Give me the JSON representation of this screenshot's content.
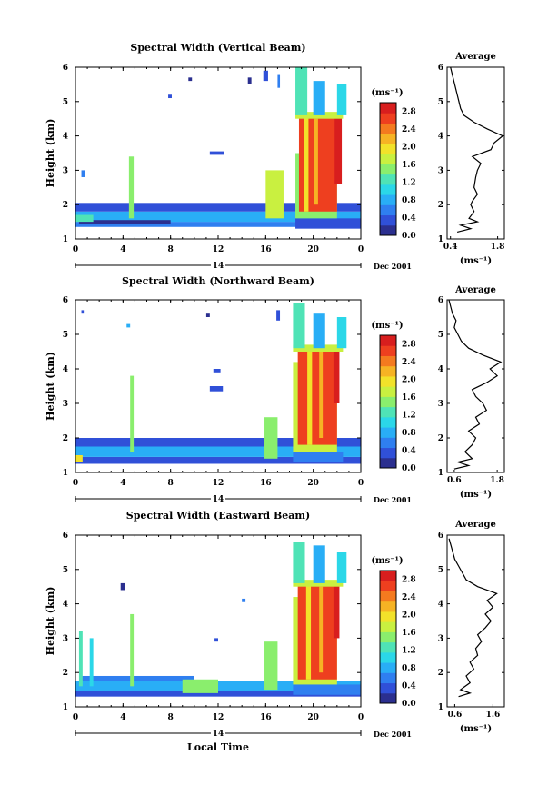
{
  "chart_data": [
    {
      "type": "heatmap",
      "title": "Spectral Width (Vertical Beam)",
      "ylabel": "Height (km)",
      "xlim": [
        0,
        24
      ],
      "ylim": [
        1,
        6
      ],
      "x_ticks": [
        "0",
        "4",
        "8",
        "12",
        "16",
        "20",
        "0"
      ],
      "y_ticks": [
        "1",
        "2",
        "3",
        "4",
        "5",
        "6"
      ],
      "date_label": "14",
      "date_suffix": "Dec 2001",
      "colorbar": {
        "title": "(ms⁻¹)",
        "min": 0.0,
        "max": 3.0,
        "tick_labels": [
          "0.0",
          "0.4",
          "0.8",
          "1.2",
          "1.6",
          "2.0",
          "2.4",
          "2.8"
        ]
      },
      "average": {
        "title": "Average",
        "xlabel": "(ms⁻¹)",
        "x_ticks": [
          "0.4",
          "1.8"
        ],
        "xlim": [
          0.3,
          2.0
        ],
        "profile": [
          [
            1.2,
            0.6
          ],
          [
            1.3,
            1.0
          ],
          [
            1.4,
            0.7
          ],
          [
            1.5,
            1.2
          ],
          [
            1.6,
            0.95
          ],
          [
            1.8,
            1.1
          ],
          [
            2.0,
            1.0
          ],
          [
            2.1,
            1.05
          ],
          [
            2.3,
            1.2
          ],
          [
            2.5,
            1.1
          ],
          [
            2.8,
            1.15
          ],
          [
            3.0,
            1.2
          ],
          [
            3.2,
            1.3
          ],
          [
            3.4,
            1.05
          ],
          [
            3.6,
            1.6
          ],
          [
            3.8,
            1.7
          ],
          [
            4.0,
            1.95
          ],
          [
            4.2,
            1.5
          ],
          [
            4.4,
            1.1
          ],
          [
            4.6,
            0.8
          ],
          [
            4.8,
            0.7
          ],
          [
            5.0,
            0.65
          ],
          [
            5.2,
            0.6
          ],
          [
            5.4,
            0.55
          ],
          [
            5.6,
            0.5
          ],
          [
            5.8,
            0.45
          ],
          [
            6.0,
            0.4
          ]
        ]
      },
      "cells": [
        {
          "t0": 0,
          "t1": 20.2,
          "h0": 1.35,
          "h1": 1.5,
          "v": 0.55
        },
        {
          "t0": 0,
          "t1": 24,
          "h0": 1.5,
          "h1": 1.8,
          "v": 0.9
        },
        {
          "t0": 0,
          "t1": 24,
          "h0": 1.8,
          "h1": 2.05,
          "v": 0.45
        },
        {
          "t0": 0.3,
          "t1": 8,
          "h0": 1.45,
          "h1": 1.55,
          "v": 0.1
        },
        {
          "t0": 0,
          "t1": 1.5,
          "h0": 1.5,
          "h1": 1.7,
          "v": 1.3
        },
        {
          "t0": 4.5,
          "t1": 4.9,
          "h0": 1.6,
          "h1": 3.4,
          "v": 1.4
        },
        {
          "t0": 16,
          "t1": 17.5,
          "h0": 1.6,
          "h1": 3.0,
          "v": 1.7
        },
        {
          "t0": 18.5,
          "t1": 24,
          "h0": 1.3,
          "h1": 1.6,
          "v": 0.45
        },
        {
          "t0": 18.5,
          "t1": 22,
          "h0": 1.6,
          "h1": 3.5,
          "v": 1.6
        },
        {
          "t0": 18.8,
          "t1": 22,
          "h0": 1.8,
          "h1": 4.6,
          "v": 2.7
        },
        {
          "t0": 19.2,
          "t1": 19.6,
          "h0": 1.8,
          "h1": 4.6,
          "v": 2.0
        },
        {
          "t0": 20.1,
          "t1": 20.4,
          "h0": 2.0,
          "h1": 4.5,
          "v": 2.2
        },
        {
          "t0": 21.8,
          "t1": 22.4,
          "h0": 2.6,
          "h1": 4.6,
          "v": 2.9
        },
        {
          "t0": 18.5,
          "t1": 22.5,
          "h0": 4.5,
          "h1": 4.7,
          "v": 1.8
        },
        {
          "t0": 18.5,
          "t1": 19.5,
          "h0": 4.6,
          "h1": 6.0,
          "v": 1.2
        },
        {
          "t0": 20.0,
          "t1": 21.0,
          "h0": 4.6,
          "h1": 5.6,
          "v": 0.9
        },
        {
          "t0": 22.0,
          "t1": 22.8,
          "h0": 4.6,
          "h1": 5.5,
          "v": 1.1
        },
        {
          "t0": 11.3,
          "t1": 12.5,
          "h0": 3.45,
          "h1": 3.55,
          "v": 0.3
        },
        {
          "t0": 0.5,
          "t1": 0.8,
          "h0": 2.8,
          "h1": 3.0,
          "v": 0.5
        },
        {
          "t0": 9.5,
          "t1": 9.8,
          "h0": 5.6,
          "h1": 5.7,
          "v": 0.2
        },
        {
          "t0": 14.5,
          "t1": 14.8,
          "h0": 5.5,
          "h1": 5.7,
          "v": 0.2
        },
        {
          "t0": 15.8,
          "t1": 16.2,
          "h0": 5.6,
          "h1": 5.9,
          "v": 0.4
        },
        {
          "t0": 17.0,
          "t1": 17.2,
          "h0": 5.4,
          "h1": 5.8,
          "v": 0.5
        },
        {
          "t0": 7.8,
          "t1": 8.1,
          "h0": 5.1,
          "h1": 5.2,
          "v": 0.3
        }
      ]
    },
    {
      "type": "heatmap",
      "title": "Spectral Width (Northward Beam)",
      "ylabel": "Height (km)",
      "xlim": [
        0,
        24
      ],
      "ylim": [
        1,
        6
      ],
      "x_ticks": [
        "0",
        "4",
        "8",
        "12",
        "16",
        "20",
        "0"
      ],
      "y_ticks": [
        "1",
        "2",
        "3",
        "4",
        "5",
        "6"
      ],
      "date_label": "14",
      "date_suffix": "Dec 2001",
      "colorbar": {
        "title": "(ms⁻¹)",
        "min": 0.0,
        "max": 3.0,
        "tick_labels": [
          "0.0",
          "0.4",
          "0.8",
          "1.2",
          "1.6",
          "2.0",
          "2.4",
          "2.8"
        ]
      },
      "average": {
        "title": "Average",
        "xlabel": "(ms⁻¹)",
        "x_ticks": [
          "0.6",
          "1.8"
        ],
        "xlim": [
          0.4,
          2.0
        ],
        "profile": [
          [
            1.1,
            0.6
          ],
          [
            1.2,
            1.0
          ],
          [
            1.3,
            0.7
          ],
          [
            1.4,
            1.1
          ],
          [
            1.6,
            0.9
          ],
          [
            1.8,
            1.1
          ],
          [
            2.0,
            1.2
          ],
          [
            2.2,
            1.0
          ],
          [
            2.4,
            1.3
          ],
          [
            2.6,
            1.2
          ],
          [
            2.8,
            1.5
          ],
          [
            3.0,
            1.4
          ],
          [
            3.2,
            1.2
          ],
          [
            3.4,
            1.1
          ],
          [
            3.6,
            1.5
          ],
          [
            3.8,
            1.8
          ],
          [
            4.0,
            1.6
          ],
          [
            4.2,
            1.9
          ],
          [
            4.4,
            1.4
          ],
          [
            4.6,
            1.0
          ],
          [
            4.8,
            0.8
          ],
          [
            5.0,
            0.7
          ],
          [
            5.2,
            0.6
          ],
          [
            5.4,
            0.65
          ],
          [
            5.6,
            0.55
          ],
          [
            5.8,
            0.5
          ],
          [
            6.0,
            0.45
          ]
        ]
      },
      "cells": [
        {
          "t0": 0,
          "t1": 24,
          "h0": 1.25,
          "h1": 1.45,
          "v": 0.4
        },
        {
          "t0": 0,
          "t1": 24,
          "h0": 1.45,
          "h1": 1.75,
          "v": 0.85
        },
        {
          "t0": 0,
          "t1": 24,
          "h0": 1.75,
          "h1": 2.0,
          "v": 0.45
        },
        {
          "t0": 0,
          "t1": 0.6,
          "h0": 1.3,
          "h1": 1.5,
          "v": 1.9
        },
        {
          "t0": 4.6,
          "t1": 4.9,
          "h0": 1.6,
          "h1": 3.8,
          "v": 1.5
        },
        {
          "t0": 15.9,
          "t1": 17.0,
          "h0": 1.4,
          "h1": 2.6,
          "v": 1.6
        },
        {
          "t0": 18.3,
          "t1": 22.5,
          "h0": 1.3,
          "h1": 1.6,
          "v": 0.5
        },
        {
          "t0": 18.3,
          "t1": 22,
          "h0": 1.6,
          "h1": 4.2,
          "v": 1.7
        },
        {
          "t0": 18.7,
          "t1": 22,
          "h0": 1.8,
          "h1": 4.6,
          "v": 2.7
        },
        {
          "t0": 19.5,
          "t1": 19.9,
          "h0": 1.8,
          "h1": 4.6,
          "v": 2.0
        },
        {
          "t0": 20.5,
          "t1": 20.8,
          "h0": 2.0,
          "h1": 4.5,
          "v": 2.2
        },
        {
          "t0": 21.7,
          "t1": 22.2,
          "h0": 3.0,
          "h1": 4.6,
          "v": 2.9
        },
        {
          "t0": 18.3,
          "t1": 22.5,
          "h0": 4.5,
          "h1": 4.7,
          "v": 1.8
        },
        {
          "t0": 18.3,
          "t1": 19.3,
          "h0": 4.6,
          "h1": 5.9,
          "v": 1.2
        },
        {
          "t0": 20.0,
          "t1": 21.0,
          "h0": 4.6,
          "h1": 5.6,
          "v": 0.9
        },
        {
          "t0": 22.0,
          "t1": 22.8,
          "h0": 4.6,
          "h1": 5.5,
          "v": 1.1
        },
        {
          "t0": 11.3,
          "t1": 12.4,
          "h0": 3.35,
          "h1": 3.5,
          "v": 0.3
        },
        {
          "t0": 11.6,
          "t1": 12.2,
          "h0": 3.9,
          "h1": 4.0,
          "v": 0.3
        },
        {
          "t0": 0.5,
          "t1": 0.7,
          "h0": 5.6,
          "h1": 5.7,
          "v": 0.4
        },
        {
          "t0": 4.3,
          "t1": 4.6,
          "h0": 5.2,
          "h1": 5.3,
          "v": 0.8
        },
        {
          "t0": 11.0,
          "t1": 11.3,
          "h0": 5.5,
          "h1": 5.6,
          "v": 0.2
        },
        {
          "t0": 16.9,
          "t1": 17.2,
          "h0": 5.4,
          "h1": 5.7,
          "v": 0.4
        }
      ]
    },
    {
      "type": "heatmap",
      "title": "Spectral Width (Eastward Beam)",
      "ylabel": "Height (km)",
      "xlabel": "Local Time",
      "xlim": [
        0,
        24
      ],
      "ylim": [
        1,
        6
      ],
      "x_ticks": [
        "0",
        "4",
        "8",
        "12",
        "16",
        "20",
        "0"
      ],
      "y_ticks": [
        "1",
        "2",
        "3",
        "4",
        "5",
        "6"
      ],
      "date_label": "14",
      "date_suffix": "Dec 2001",
      "colorbar": {
        "title": "(ms⁻¹)",
        "min": 0.0,
        "max": 3.0,
        "tick_labels": [
          "0.0",
          "0.4",
          "0.8",
          "1.2",
          "1.6",
          "2.0",
          "2.4",
          "2.8"
        ]
      },
      "average": {
        "title": "Average",
        "xlabel": "(ms⁻¹)",
        "x_ticks": [
          "0.6",
          "1.6"
        ],
        "xlim": [
          0.4,
          1.9
        ],
        "profile": [
          [
            1.3,
            0.7
          ],
          [
            1.4,
            1.0
          ],
          [
            1.5,
            0.75
          ],
          [
            1.7,
            1.0
          ],
          [
            1.9,
            0.9
          ],
          [
            2.1,
            1.1
          ],
          [
            2.3,
            1.0
          ],
          [
            2.5,
            1.2
          ],
          [
            2.7,
            1.15
          ],
          [
            2.9,
            1.3
          ],
          [
            3.1,
            1.2
          ],
          [
            3.3,
            1.4
          ],
          [
            3.5,
            1.55
          ],
          [
            3.7,
            1.4
          ],
          [
            3.9,
            1.6
          ],
          [
            4.1,
            1.45
          ],
          [
            4.3,
            1.7
          ],
          [
            4.5,
            1.2
          ],
          [
            4.7,
            0.9
          ],
          [
            4.9,
            0.8
          ],
          [
            5.1,
            0.7
          ],
          [
            5.3,
            0.6
          ],
          [
            5.5,
            0.55
          ],
          [
            5.7,
            0.5
          ],
          [
            5.9,
            0.45
          ]
        ]
      },
      "cells": [
        {
          "t0": 0,
          "t1": 24,
          "h0": 1.3,
          "h1": 1.45,
          "v": 0.45
        },
        {
          "t0": 0,
          "t1": 24,
          "h0": 1.45,
          "h1": 1.75,
          "v": 0.8
        },
        {
          "t0": 0.5,
          "t1": 10,
          "h0": 1.75,
          "h1": 1.9,
          "v": 0.6
        },
        {
          "t0": 9,
          "t1": 12,
          "h0": 1.4,
          "h1": 1.8,
          "v": 1.6
        },
        {
          "t0": 0.3,
          "t1": 0.6,
          "h0": 1.6,
          "h1": 3.2,
          "v": 1.2
        },
        {
          "t0": 1.2,
          "t1": 1.5,
          "h0": 1.6,
          "h1": 3.0,
          "v": 1.0
        },
        {
          "t0": 4.6,
          "t1": 4.9,
          "h0": 1.6,
          "h1": 3.7,
          "v": 1.5
        },
        {
          "t0": 15.9,
          "t1": 17.0,
          "h0": 1.5,
          "h1": 2.9,
          "v": 1.6
        },
        {
          "t0": 18.3,
          "t1": 24,
          "h0": 1.35,
          "h1": 1.65,
          "v": 0.5
        },
        {
          "t0": 18.3,
          "t1": 22,
          "h0": 1.65,
          "h1": 4.2,
          "v": 1.7
        },
        {
          "t0": 18.7,
          "t1": 22,
          "h0": 1.8,
          "h1": 4.6,
          "v": 2.7
        },
        {
          "t0": 19.4,
          "t1": 19.8,
          "h0": 1.8,
          "h1": 4.6,
          "v": 2.0
        },
        {
          "t0": 20.5,
          "t1": 20.8,
          "h0": 2.0,
          "h1": 4.5,
          "v": 2.2
        },
        {
          "t0": 21.7,
          "t1": 22.2,
          "h0": 3.0,
          "h1": 4.6,
          "v": 2.9
        },
        {
          "t0": 18.3,
          "t1": 22.5,
          "h0": 4.5,
          "h1": 4.7,
          "v": 1.8
        },
        {
          "t0": 18.3,
          "t1": 19.3,
          "h0": 4.6,
          "h1": 5.8,
          "v": 1.2
        },
        {
          "t0": 20.0,
          "t1": 21.0,
          "h0": 4.6,
          "h1": 5.7,
          "v": 0.9
        },
        {
          "t0": 22.0,
          "t1": 22.8,
          "h0": 4.6,
          "h1": 5.5,
          "v": 1.1
        },
        {
          "t0": 3.8,
          "t1": 4.2,
          "h0": 4.4,
          "h1": 4.6,
          "v": 0.2
        },
        {
          "t0": 11.7,
          "t1": 12.0,
          "h0": 2.9,
          "h1": 3.0,
          "v": 0.3
        },
        {
          "t0": 14.0,
          "t1": 14.3,
          "h0": 4.05,
          "h1": 4.15,
          "v": 0.5
        }
      ]
    }
  ]
}
